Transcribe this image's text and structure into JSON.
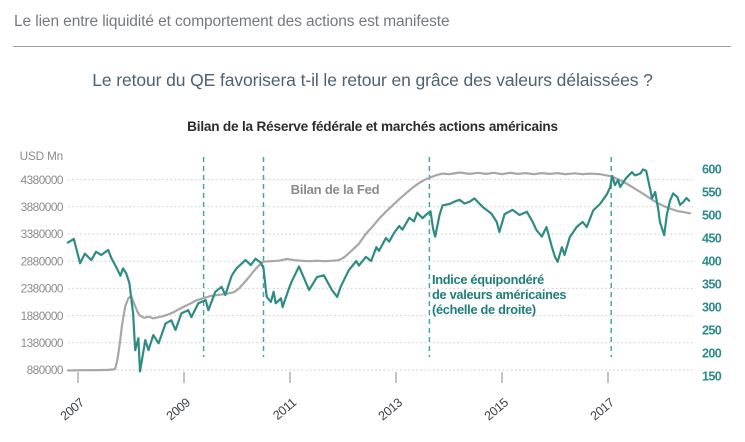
{
  "page": {
    "header_title": "Le lien entre liquidité et comportement des actions est manifeste",
    "subtitle": "Le retour du QE favorisera t-il le retour en grâce des valeurs délaissées ?"
  },
  "chart_data": {
    "type": "line",
    "title": "Bilan de la Réserve fédérale et marchés actions américains",
    "grid": "horizontal-dotted",
    "legend_position": "inline-annotations",
    "colors": {
      "fed_line": "#a7a7a7",
      "index_line": "#2f8c85",
      "event_line": "#49a5a2",
      "gridline": "#cbcbcb",
      "right_tick": "#2e8b8b",
      "accent_text": "#1f7e7b"
    },
    "left_axis": {
      "label": "USD Mn",
      "ticks": [
        4380000,
        3880000,
        3380000,
        2880000,
        2380000,
        1880000,
        1380000,
        880000
      ],
      "range": [
        880000,
        4550000
      ]
    },
    "right_axis": {
      "ticks": [
        600,
        550,
        500,
        450,
        400,
        350,
        300,
        250,
        200,
        150
      ],
      "range": [
        150,
        613
      ]
    },
    "x_axis": {
      "ticks": [
        2007,
        2009,
        2011,
        2013,
        2015,
        2017
      ],
      "range": [
        2006.8,
        2018.65
      ]
    },
    "event_vlines": {
      "style": "dashed",
      "x": [
        2009.37,
        2010.5,
        2013.63,
        2017.06
      ]
    },
    "annotations": [
      {
        "id": "fed-label",
        "lines": [
          "Bilan de la Fed"
        ]
      },
      {
        "id": "indice-label",
        "lines": [
          "Indice équipondéré",
          "de valeurs américaines",
          "(échelle de droite)"
        ]
      }
    ],
    "series": [
      {
        "name": "Bilan de la Fed",
        "axis": "left",
        "unit": "USD Mn",
        "color": "#a7a7a7",
        "points": [
          [
            2006.81,
            870000
          ],
          [
            2007.09,
            876000
          ],
          [
            2007.38,
            878000
          ],
          [
            2007.57,
            882000
          ],
          [
            2007.66,
            890000
          ],
          [
            2007.7,
            900000
          ],
          [
            2007.74,
            1050000
          ],
          [
            2007.78,
            1300000
          ],
          [
            2007.83,
            1700000
          ],
          [
            2007.89,
            2050000
          ],
          [
            2007.95,
            2200000
          ],
          [
            2008.0,
            2240000
          ],
          [
            2008.06,
            2100000
          ],
          [
            2008.12,
            1950000
          ],
          [
            2008.17,
            1880000
          ],
          [
            2008.25,
            1840000
          ],
          [
            2008.33,
            1860000
          ],
          [
            2008.42,
            1830000
          ],
          [
            2008.52,
            1850000
          ],
          [
            2008.61,
            1870000
          ],
          [
            2008.7,
            1900000
          ],
          [
            2008.8,
            1940000
          ],
          [
            2008.89,
            1990000
          ],
          [
            2009.01,
            2050000
          ],
          [
            2009.12,
            2100000
          ],
          [
            2009.23,
            2160000
          ],
          [
            2009.37,
            2200000
          ],
          [
            2009.5,
            2240000
          ],
          [
            2009.65,
            2260000
          ],
          [
            2009.8,
            2280000
          ],
          [
            2009.94,
            2310000
          ],
          [
            2010.03,
            2370000
          ],
          [
            2010.13,
            2480000
          ],
          [
            2010.22,
            2580000
          ],
          [
            2010.31,
            2690000
          ],
          [
            2010.41,
            2800000
          ],
          [
            2010.5,
            2870000
          ],
          [
            2010.64,
            2880000
          ],
          [
            2010.79,
            2890000
          ],
          [
            2010.94,
            2920000
          ],
          [
            2011.07,
            2900000
          ],
          [
            2011.2,
            2890000
          ],
          [
            2011.36,
            2880000
          ],
          [
            2011.51,
            2890000
          ],
          [
            2011.66,
            2880000
          ],
          [
            2011.81,
            2890000
          ],
          [
            2011.92,
            2900000
          ],
          [
            2012.02,
            2950000
          ],
          [
            2012.17,
            3080000
          ],
          [
            2012.3,
            3200000
          ],
          [
            2012.43,
            3380000
          ],
          [
            2012.57,
            3530000
          ],
          [
            2012.68,
            3660000
          ],
          [
            2012.81,
            3790000
          ],
          [
            2012.93,
            3900000
          ],
          [
            2013.06,
            4020000
          ],
          [
            2013.19,
            4130000
          ],
          [
            2013.31,
            4230000
          ],
          [
            2013.44,
            4320000
          ],
          [
            2013.55,
            4380000
          ],
          [
            2013.65,
            4420000
          ],
          [
            2013.76,
            4460000
          ],
          [
            2013.88,
            4490000
          ],
          [
            2014.0,
            4480000
          ],
          [
            2014.2,
            4510000
          ],
          [
            2014.39,
            4485000
          ],
          [
            2014.55,
            4505000
          ],
          [
            2014.7,
            4485000
          ],
          [
            2014.85,
            4505000
          ],
          [
            2015.0,
            4480000
          ],
          [
            2015.15,
            4505000
          ],
          [
            2015.3,
            4485000
          ],
          [
            2015.45,
            4500000
          ],
          [
            2015.6,
            4480000
          ],
          [
            2015.75,
            4500000
          ],
          [
            2015.9,
            4485000
          ],
          [
            2016.05,
            4500000
          ],
          [
            2016.2,
            4480000
          ],
          [
            2016.37,
            4495000
          ],
          [
            2016.52,
            4480000
          ],
          [
            2016.66,
            4490000
          ],
          [
            2016.85,
            4480000
          ],
          [
            2017.06,
            4440000
          ],
          [
            2017.23,
            4370000
          ],
          [
            2017.38,
            4290000
          ],
          [
            2017.53,
            4200000
          ],
          [
            2017.66,
            4120000
          ],
          [
            2017.8,
            4030000
          ],
          [
            2017.93,
            3950000
          ],
          [
            2018.06,
            3890000
          ],
          [
            2018.19,
            3840000
          ],
          [
            2018.32,
            3800000
          ],
          [
            2018.44,
            3780000
          ],
          [
            2018.55,
            3760000
          ]
        ]
      },
      {
        "name": "Indice équipondéré de valeurs américaines",
        "axis": "right",
        "color": "#2f8c85",
        "points": [
          [
            2006.81,
            440
          ],
          [
            2006.92,
            448
          ],
          [
            2007.04,
            395
          ],
          [
            2007.13,
            416
          ],
          [
            2007.25,
            402
          ],
          [
            2007.34,
            420
          ],
          [
            2007.44,
            413
          ],
          [
            2007.57,
            424
          ],
          [
            2007.63,
            406
          ],
          [
            2007.72,
            387
          ],
          [
            2007.8,
            368
          ],
          [
            2007.85,
            384
          ],
          [
            2007.91,
            373
          ],
          [
            2007.97,
            352
          ],
          [
            2008.04,
            286
          ],
          [
            2008.08,
            206
          ],
          [
            2008.14,
            232
          ],
          [
            2008.17,
            160
          ],
          [
            2008.27,
            228
          ],
          [
            2008.33,
            206
          ],
          [
            2008.42,
            239
          ],
          [
            2008.52,
            221
          ],
          [
            2008.65,
            264
          ],
          [
            2008.76,
            271
          ],
          [
            2008.84,
            250
          ],
          [
            2008.95,
            286
          ],
          [
            2009.08,
            293
          ],
          [
            2009.14,
            278
          ],
          [
            2009.27,
            308
          ],
          [
            2009.41,
            315
          ],
          [
            2009.46,
            293
          ],
          [
            2009.59,
            333
          ],
          [
            2009.71,
            344
          ],
          [
            2009.78,
            326
          ],
          [
            2009.9,
            368
          ],
          [
            2009.99,
            384
          ],
          [
            2010.16,
            402
          ],
          [
            2010.26,
            391
          ],
          [
            2010.35,
            405
          ],
          [
            2010.45,
            396
          ],
          [
            2010.5,
            384
          ],
          [
            2010.56,
            322
          ],
          [
            2010.64,
            311
          ],
          [
            2010.69,
            333
          ],
          [
            2010.73,
            308
          ],
          [
            2010.83,
            319
          ],
          [
            2010.86,
            300
          ],
          [
            2010.98,
            340
          ],
          [
            2011.03,
            355
          ],
          [
            2011.17,
            388
          ],
          [
            2011.36,
            337
          ],
          [
            2011.51,
            365
          ],
          [
            2011.64,
            369
          ],
          [
            2011.79,
            337
          ],
          [
            2011.89,
            322
          ],
          [
            2011.96,
            345
          ],
          [
            2012.11,
            380
          ],
          [
            2012.25,
            400
          ],
          [
            2012.3,
            390
          ],
          [
            2012.43,
            409
          ],
          [
            2012.53,
            400
          ],
          [
            2012.63,
            430
          ],
          [
            2012.68,
            422
          ],
          [
            2012.81,
            450
          ],
          [
            2012.87,
            442
          ],
          [
            2012.97,
            462
          ],
          [
            2013.06,
            476
          ],
          [
            2013.12,
            468
          ],
          [
            2013.25,
            494
          ],
          [
            2013.34,
            486
          ],
          [
            2013.4,
            505
          ],
          [
            2013.5,
            493
          ],
          [
            2013.59,
            503
          ],
          [
            2013.65,
            508
          ],
          [
            2013.7,
            470
          ],
          [
            2013.74,
            453
          ],
          [
            2013.82,
            500
          ],
          [
            2013.88,
            521
          ],
          [
            2014.01,
            524
          ],
          [
            2014.1,
            529
          ],
          [
            2014.2,
            533
          ],
          [
            2014.29,
            525
          ],
          [
            2014.39,
            529
          ],
          [
            2014.48,
            536
          ],
          [
            2014.63,
            518
          ],
          [
            2014.8,
            503
          ],
          [
            2014.9,
            485
          ],
          [
            2014.95,
            463
          ],
          [
            2015.05,
            502
          ],
          [
            2015.2,
            511
          ],
          [
            2015.33,
            500
          ],
          [
            2015.47,
            507
          ],
          [
            2015.58,
            485
          ],
          [
            2015.65,
            467
          ],
          [
            2015.75,
            453
          ],
          [
            2015.84,
            474
          ],
          [
            2015.94,
            431
          ],
          [
            2016.0,
            409
          ],
          [
            2016.05,
            398
          ],
          [
            2016.13,
            430
          ],
          [
            2016.18,
            413
          ],
          [
            2016.28,
            452
          ],
          [
            2016.41,
            474
          ],
          [
            2016.52,
            485
          ],
          [
            2016.6,
            474
          ],
          [
            2016.72,
            510
          ],
          [
            2016.85,
            524
          ],
          [
            2016.98,
            545
          ],
          [
            2017.04,
            560
          ],
          [
            2017.08,
            585
          ],
          [
            2017.13,
            565
          ],
          [
            2017.19,
            576
          ],
          [
            2017.23,
            561
          ],
          [
            2017.34,
            580
          ],
          [
            2017.45,
            593
          ],
          [
            2017.51,
            586
          ],
          [
            2017.61,
            590
          ],
          [
            2017.66,
            599
          ],
          [
            2017.72,
            596
          ],
          [
            2017.8,
            554
          ],
          [
            2017.83,
            536
          ],
          [
            2017.89,
            550
          ],
          [
            2017.95,
            510
          ],
          [
            2017.98,
            485
          ],
          [
            2018.02,
            470
          ],
          [
            2018.06,
            456
          ],
          [
            2018.11,
            500
          ],
          [
            2018.17,
            531
          ],
          [
            2018.23,
            547
          ],
          [
            2018.31,
            539
          ],
          [
            2018.36,
            522
          ],
          [
            2018.42,
            528
          ],
          [
            2018.48,
            537
          ],
          [
            2018.53,
            531
          ]
        ]
      }
    ]
  }
}
